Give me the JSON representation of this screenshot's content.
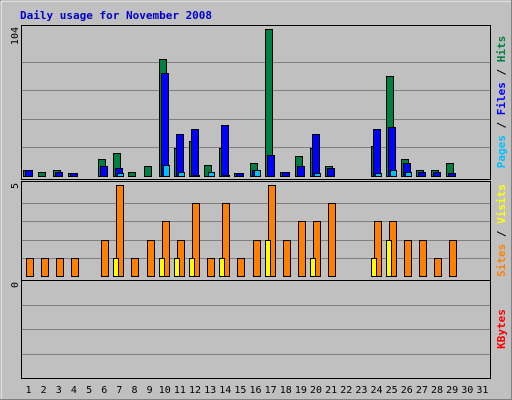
{
  "chart_data": {
    "type": "bar",
    "title": "Daily usage for November 2008",
    "x": [
      "1",
      "2",
      "3",
      "4",
      "5",
      "6",
      "7",
      "8",
      "9",
      "10",
      "11",
      "12",
      "13",
      "14",
      "15",
      "16",
      "17",
      "18",
      "19",
      "20",
      "21",
      "22",
      "23",
      "24",
      "25",
      "26",
      "27",
      "28",
      "29",
      "30",
      "31"
    ],
    "weekend_days": [
      1,
      2,
      8,
      9,
      15,
      16,
      22,
      23,
      29,
      30
    ],
    "grid": true,
    "panels": [
      {
        "name": "hits-files-pages",
        "ymax_label": "104",
        "ylim": [
          0,
          104
        ],
        "legend": [
          {
            "label": "Pages",
            "color": "#00c0ff"
          },
          {
            "label": " / ",
            "color": "#000000"
          },
          {
            "label": "Files",
            "color": "#0000ff"
          },
          {
            "label": " / ",
            "color": "#000000"
          },
          {
            "label": "Hits",
            "color": "#008040"
          }
        ],
        "series": [
          {
            "name": "Hits",
            "color": "#008040",
            "values": [
              4,
              3,
              4,
              2,
              0,
              12,
              16,
              3,
              7,
              83,
              20,
              25,
              8,
              20,
              2,
              9,
              104,
              3,
              14,
              20,
              7,
              0,
              0,
              21,
              71,
              12,
              4,
              4,
              9,
              0,
              0
            ]
          },
          {
            "name": "Files",
            "color": "#0000ff",
            "values": [
              4,
              0,
              3,
              2,
              0,
              7,
              6,
              0,
              0,
              73,
              30,
              33,
              0,
              36,
              2,
              4,
              15,
              3,
              7,
              30,
              6,
              0,
              0,
              33,
              35,
              9,
              3,
              3,
              2,
              0,
              0
            ]
          },
          {
            "name": "Pages",
            "color": "#00c0ff",
            "values": [
              0,
              0,
              0,
              0,
              0,
              0,
              2,
              0,
              0,
              8,
              3,
              1,
              3,
              1,
              0,
              4,
              0,
              0,
              0,
              2,
              0,
              0,
              0,
              2,
              4,
              3,
              0,
              0,
              0,
              0,
              0
            ]
          }
        ]
      },
      {
        "name": "visits-sites",
        "ymax_label": "5",
        "ylim": [
          0,
          5
        ],
        "legend": [
          {
            "label": "Sites",
            "color": "#ff8000"
          },
          {
            "label": " / ",
            "color": "#000000"
          },
          {
            "label": "Visits",
            "color": "#ffff00"
          }
        ],
        "series": [
          {
            "name": "Sites",
            "color": "#ff8000",
            "values": [
              1,
              1,
              1,
              1,
              0,
              2,
              5,
              1,
              2,
              3,
              2,
              4,
              1,
              4,
              1,
              2,
              5,
              2,
              3,
              3,
              4,
              0,
              0,
              3,
              3,
              2,
              2,
              1,
              2,
              0,
              0
            ]
          },
          {
            "name": "Visits",
            "color": "#ffff00",
            "values": [
              0,
              0,
              0,
              0,
              0,
              0,
              1,
              0,
              0,
              1,
              1,
              1,
              0,
              1,
              0,
              0,
              2,
              0,
              0,
              1,
              0,
              0,
              0,
              1,
              2,
              0,
              0,
              0,
              0,
              0,
              0
            ]
          }
        ]
      },
      {
        "name": "kbytes",
        "ymax_label": "0",
        "ylim": [
          0,
          1
        ],
        "legend": [
          {
            "label": "KBytes",
            "color": "#ff0000"
          }
        ],
        "series": []
      }
    ],
    "colors": {
      "background": "#c0c0c0",
      "title": "#0000cc",
      "weekday_label": "#000000",
      "weekend_label": "#008040"
    }
  }
}
